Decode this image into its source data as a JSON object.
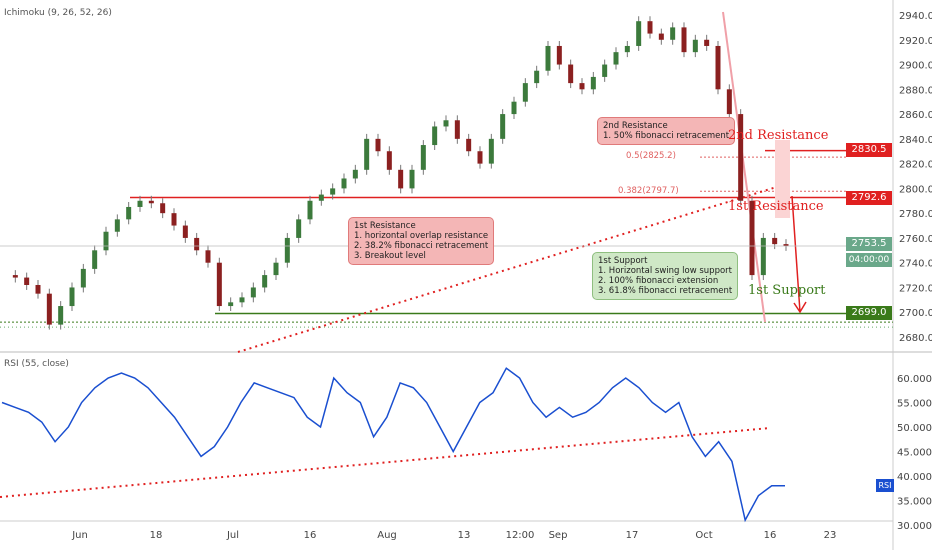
{
  "indicator_label": "Ichimoku (9, 26, 52, 26)",
  "rsi_label": "RSI (55, close)",
  "rsi_badge": "RSI",
  "chart_data": {
    "type": "candlestick",
    "price_axis": {
      "ticks": [
        2940,
        2920,
        2900,
        2880,
        2860,
        2840,
        2820,
        2800,
        2780,
        2760,
        2740,
        2720,
        2700,
        2680
      ],
      "labels": [
        "2940.0",
        "2920.0",
        "2900.0",
        "2880.0",
        "2860.0",
        "2840.0",
        "2820.0",
        "2800.0",
        "2780.0",
        "2760.0",
        "2740.0",
        "2720.0",
        "2700.0",
        "2680.0"
      ]
    },
    "rsi_axis": {
      "ticks": [
        60,
        55,
        50,
        45,
        40,
        35,
        30
      ],
      "labels": [
        "60.0000",
        "55.0000",
        "50.0000",
        "45.0000",
        "40.0000",
        "35.0000",
        "30.0000"
      ]
    },
    "x_labels": [
      "Jun",
      "18",
      "Jul",
      "16",
      "Aug",
      "13",
      "12:00",
      "Sep",
      "17",
      "Oct",
      "16",
      "23"
    ],
    "price_series": [
      2730,
      2728,
      2722,
      2715,
      2690,
      2705,
      2720,
      2735,
      2750,
      2765,
      2775,
      2785,
      2790,
      2788,
      2780,
      2770,
      2760,
      2750,
      2740,
      2705,
      2708,
      2712,
      2720,
      2730,
      2740,
      2760,
      2775,
      2790,
      2795,
      2800,
      2808,
      2815,
      2840,
      2830,
      2815,
      2800,
      2815,
      2835,
      2850,
      2855,
      2840,
      2830,
      2820,
      2840,
      2860,
      2870,
      2885,
      2895,
      2915,
      2900,
      2885,
      2880,
      2890,
      2900,
      2910,
      2915,
      2935,
      2925,
      2920,
      2930,
      2910,
      2920,
      2915,
      2880,
      2860,
      2790,
      2730,
      2760,
      2755,
      2753.5
    ],
    "rsi_series": [
      55,
      54,
      53,
      51,
      47,
      50,
      55,
      58,
      60,
      61,
      60,
      58,
      55,
      52,
      48,
      44,
      46,
      50,
      55,
      59,
      58,
      57,
      56,
      52,
      50,
      60,
      57,
      55,
      48,
      52,
      59,
      58,
      55,
      50,
      45,
      50,
      55,
      57,
      62,
      60,
      55,
      52,
      54,
      52,
      53,
      55,
      58,
      60,
      58,
      55,
      53,
      55,
      48,
      44,
      47,
      43,
      31,
      36,
      38,
      38
    ],
    "levels": [
      {
        "name": "2nd Resistance",
        "value": 2830.5,
        "label": "2830.5"
      },
      {
        "name": "1st Resistance",
        "value": 2792.6,
        "label": "2792.6"
      },
      {
        "name": "1st Support",
        "value": 2699.0,
        "label": "2699.0"
      }
    ],
    "last_price": "2753.5",
    "countdown": "04:00:00",
    "fib_levels": [
      {
        "label": "0.5(2825.2)",
        "value": 2825.2
      },
      {
        "label": "0.382(2797.7)",
        "value": 2797.7
      }
    ]
  },
  "notes": {
    "res1": "1st Resistance\n1. horizontal overlap resistance\n2. 38.2% fibonacci retracement\n3. Breakout level",
    "res2": "2nd Resistance\n1. 50% fibonacci retracement",
    "sup1": "1st Support\n1. Horizontal swing low support\n2. 100% fibonacci extension\n3. 61.8% fibonacci retracement"
  },
  "colors": {
    "up": "#3c7a3c",
    "down": "#8b2020",
    "red": "#e02020",
    "green": "#3a7a1a",
    "rsi": "#1a4fd0"
  }
}
